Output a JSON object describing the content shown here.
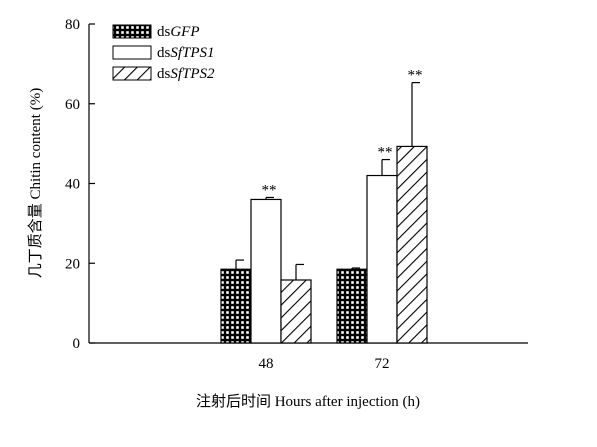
{
  "chart_data": {
    "type": "bar",
    "categories": [
      "48",
      "72"
    ],
    "series": [
      {
        "name_prefix": "ds",
        "name_italic": "GFP",
        "pattern": "grid",
        "values": [
          18.5,
          18.5
        ],
        "errors": [
          2.3,
          0.3
        ],
        "significance": [
          "",
          ""
        ]
      },
      {
        "name_prefix": "ds",
        "name_italic": "SfTPS1",
        "pattern": "solid-white",
        "values": [
          36.0,
          42.0
        ],
        "errors": [
          0.5,
          4.0
        ],
        "significance": [
          "**",
          "**"
        ]
      },
      {
        "name_prefix": "ds",
        "name_italic": "SfTPS2",
        "pattern": "diagonal",
        "values": [
          15.8,
          49.3
        ],
        "errors": [
          3.9,
          16.0
        ],
        "significance": [
          "",
          "**"
        ]
      }
    ],
    "ylabel": "几丁质含量 Chitin content (%)",
    "xlabel": "注射后时间 Hours after injection (h)",
    "ylim": [
      0,
      80
    ],
    "yticks": [
      "0",
      "20",
      "40",
      "60",
      "80"
    ],
    "legend_position": "top-left",
    "grid": false,
    "bar_color": "#000000"
  }
}
